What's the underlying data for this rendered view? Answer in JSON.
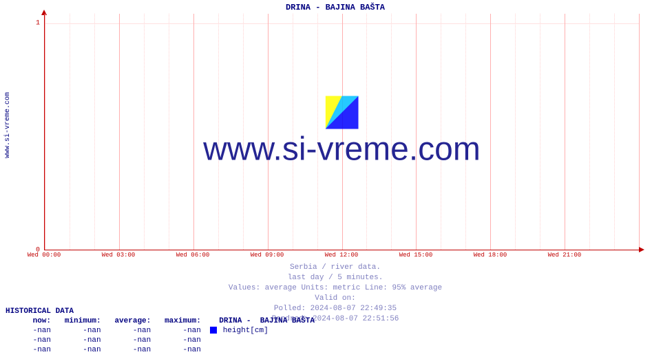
{
  "watermark_text": "www.si-vreme.com",
  "vertical_label": "www.si-vreme.com",
  "chart": {
    "type": "line",
    "title": "DRINA -  BAJINA BAŠTA",
    "title_fontsize": 12,
    "title_color": "#000080",
    "background_color": "#ffffff",
    "axis_color": "#c00000",
    "grid_color": "#ffe0e0",
    "grid_major_color": "#ffb0b0",
    "ylim": [
      0,
      1
    ],
    "yticks": [
      0,
      1
    ],
    "xticks": [
      "Wed 00:00",
      "Wed 03:00",
      "Wed 06:00",
      "Wed 09:00",
      "Wed 12:00",
      "Wed 15:00",
      "Wed 18:00",
      "Wed 21:00"
    ],
    "xtick_minor_interval_hours": 1,
    "series": [],
    "watermark_colors": [
      "#ffff00",
      "#00c0ff",
      "#0000ff"
    ]
  },
  "subtitle": {
    "line1": "Serbia / river data.",
    "line2": "last day / 5 minutes.",
    "line3": "Values: average  Units: metric  Line: 95% average",
    "line4": "Valid on:",
    "line5": "Polled: 2024-08-07 22:49:35",
    "line6": "Rendred: 2024-08-07 22:51:56",
    "color": "#8080c0"
  },
  "historical": {
    "heading": "HISTORICAL DATA",
    "columns": [
      "now:",
      "minimum:",
      "average:",
      "maximum:"
    ],
    "series_label": "DRINA -  BAJINA BAŠTA",
    "unit_label": "height[cm]",
    "legend_color": "#0000ff",
    "rows": [
      [
        "-nan",
        "-nan",
        "-nan",
        "-nan"
      ],
      [
        "-nan",
        "-nan",
        "-nan",
        "-nan"
      ],
      [
        "-nan",
        "-nan",
        "-nan",
        "-nan"
      ]
    ]
  }
}
